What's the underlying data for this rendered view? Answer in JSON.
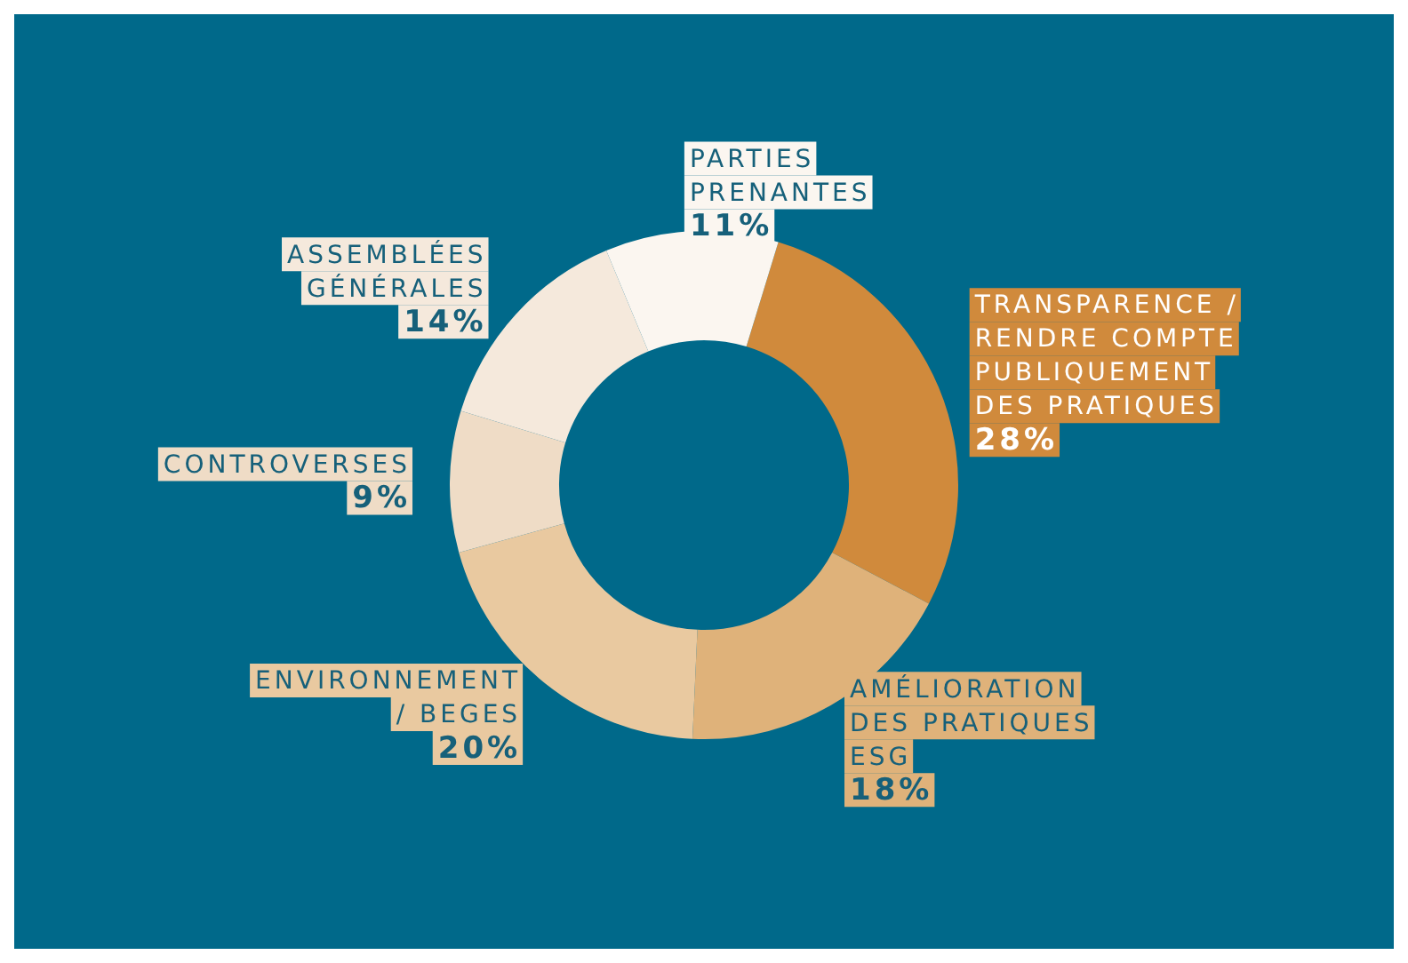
{
  "chart_data": {
    "type": "donut",
    "categories": [
      "TRANSPARENCE / RENDRE COMPTE PUBLIQUEMENT DES PRATIQUES",
      "AMÉLIORATION DES PRATIQUES ESG",
      "ENVIRONNEMENT / BEGES",
      "CONTROVERSES",
      "ASSEMBLÉES GÉNÉRALES",
      "PARTIES PRENANTES"
    ],
    "values": [
      28,
      18,
      20,
      9,
      14,
      11
    ],
    "value_labels": [
      "28%",
      "18%",
      "20%",
      "9%",
      "14%",
      "11%"
    ],
    "colors": [
      "#d08a3c",
      "#dfb27a",
      "#e9c9a0",
      "#efdcc6",
      "#f5e9dc",
      "#fbf6f0"
    ],
    "legend": false
  }
}
